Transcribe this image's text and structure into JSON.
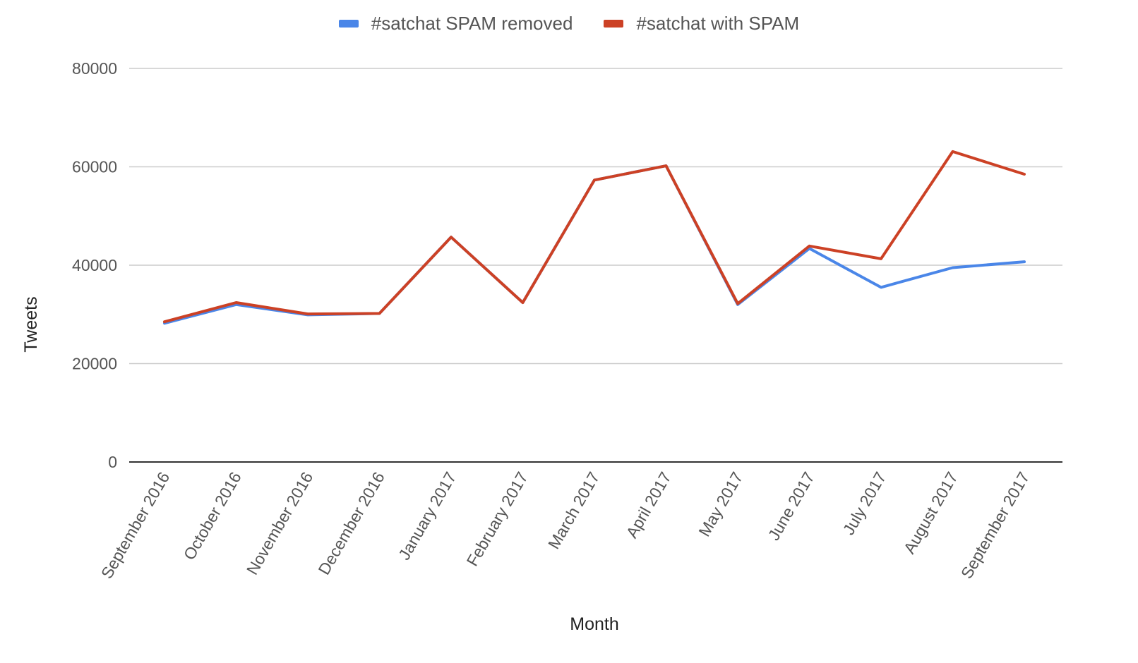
{
  "legend": [
    {
      "label": "#satchat SPAM removed",
      "color": "#4a86e8"
    },
    {
      "label": "#satchat with SPAM",
      "color": "#cc4125"
    }
  ],
  "chart_data": {
    "type": "line",
    "title": "",
    "xlabel": "Month",
    "ylabel": "Tweets",
    "ylim": [
      0,
      80000
    ],
    "yticks": [
      0,
      20000,
      40000,
      60000,
      80000
    ],
    "grid": true,
    "legend_position": "top",
    "categories": [
      "September 2016",
      "October 2016",
      "November 2016",
      "December 2016",
      "January 2017",
      "February 2017",
      "March 2017",
      "April 2017",
      "May 2017",
      "June 2017",
      "July 2017",
      "August 2017",
      "September 2017"
    ],
    "series": [
      {
        "name": "#satchat SPAM removed",
        "color": "#4a86e8",
        "values": [
          28200,
          32000,
          29900,
          30200,
          45700,
          32400,
          57300,
          60200,
          32000,
          43400,
          35500,
          39500,
          40700
        ]
      },
      {
        "name": "#satchat with SPAM",
        "color": "#cc4125",
        "values": [
          28500,
          32400,
          30100,
          30200,
          45700,
          32400,
          57300,
          60200,
          32200,
          43900,
          41300,
          63100,
          58500
        ]
      }
    ]
  }
}
